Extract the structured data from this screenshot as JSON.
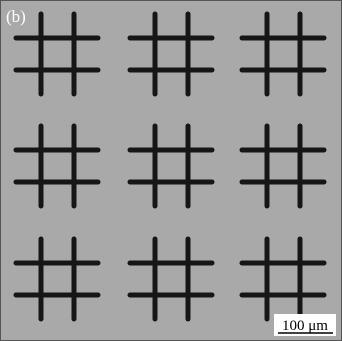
{
  "panel_label": "(b)",
  "scale_bar": {
    "label": "100 μm"
  }
}
